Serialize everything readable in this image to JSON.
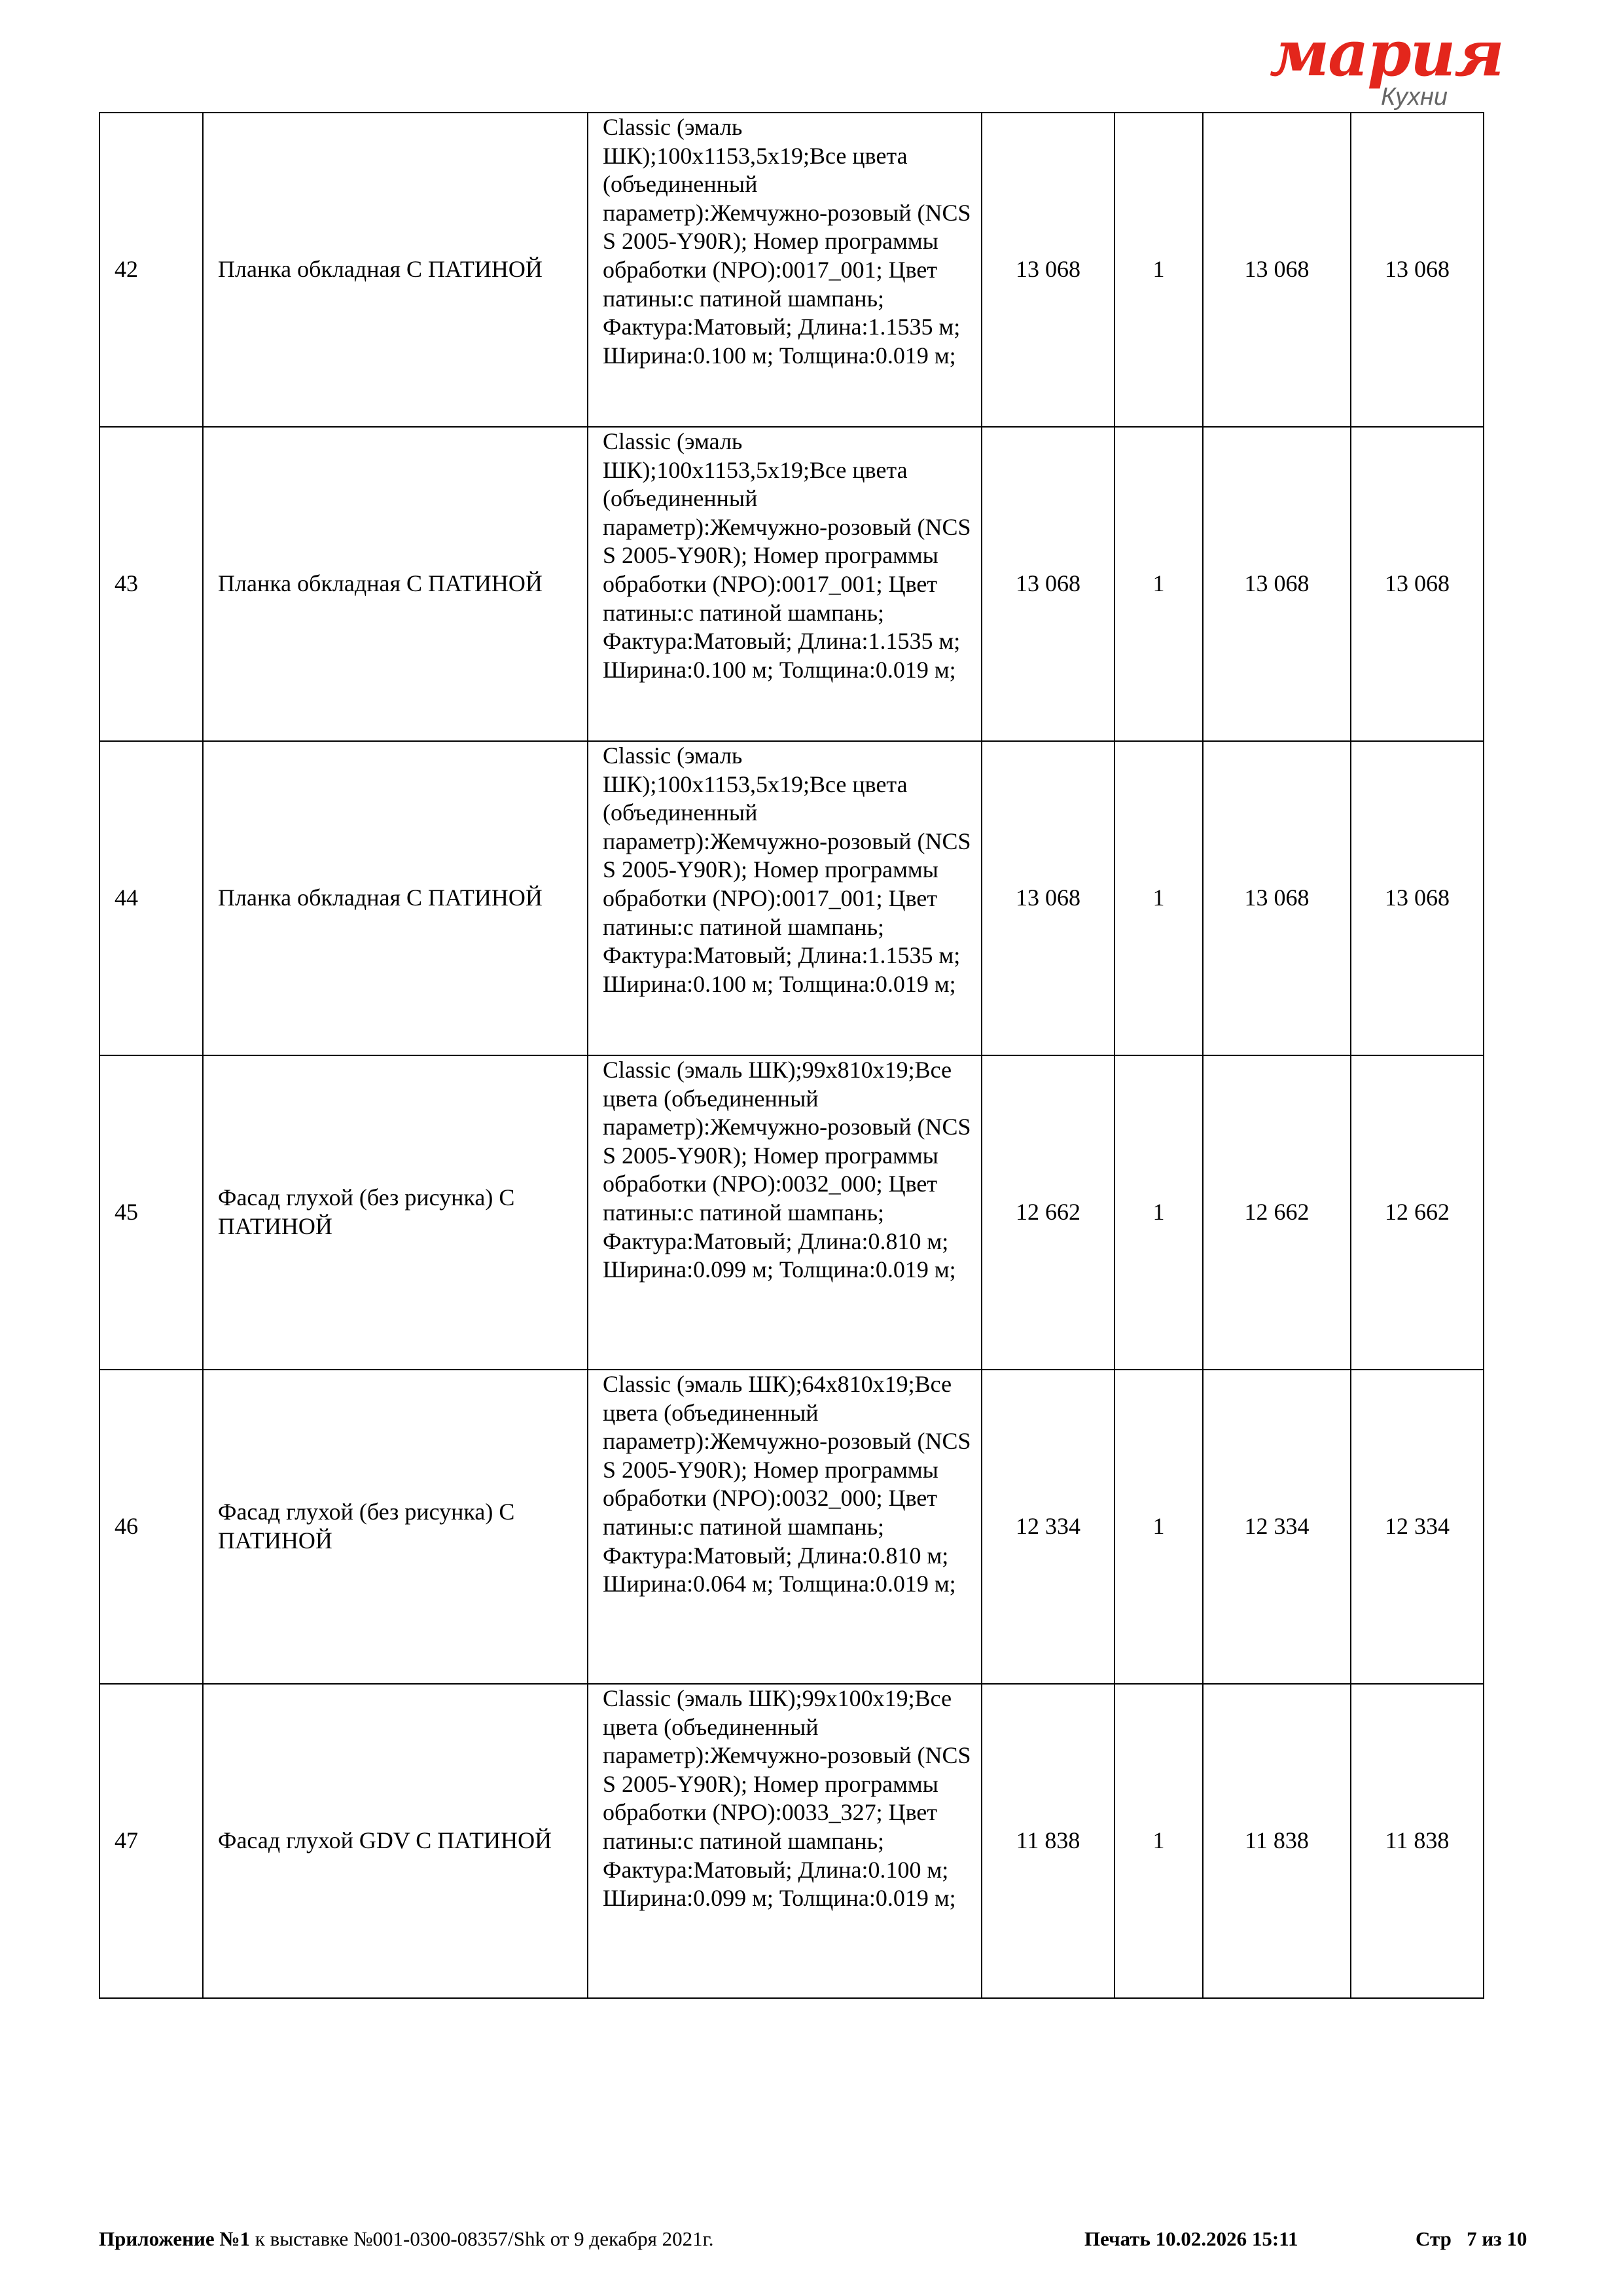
{
  "logo": {
    "brand": "мария",
    "sub": "Кухни",
    "brand_color": "#e3261c"
  },
  "rows": [
    {
      "n": "42",
      "name": "Планка обкладная С ПАТИНОЙ",
      "desc": "Classic (эмаль ШК);100x1153,5x19;Все цвета (объединенный параметр):Жемчужно-розовый (NCS S 2005-Y90R); Номер программы обработки (NPO):0017_001; Цвет патины:с патиной шампань; Фактура:Матовый; Длина:1.1535 м; Ширина:0.100 м; Толщина:0.019 м;",
      "price": "13 068",
      "qty": "1",
      "sum": "13 068",
      "total": "13 068"
    },
    {
      "n": "43",
      "name": "Планка обкладная С ПАТИНОЙ",
      "desc": "Classic (эмаль ШК);100x1153,5x19;Все цвета (объединенный параметр):Жемчужно-розовый (NCS S 2005-Y90R); Номер программы обработки (NPO):0017_001; Цвет патины:с патиной шампань; Фактура:Матовый; Длина:1.1535 м; Ширина:0.100 м; Толщина:0.019 м;",
      "price": "13 068",
      "qty": "1",
      "sum": "13 068",
      "total": "13 068"
    },
    {
      "n": "44",
      "name": "Планка обкладная С ПАТИНОЙ",
      "desc": "Classic (эмаль ШК);100x1153,5x19;Все цвета (объединенный параметр):Жемчужно-розовый (NCS S 2005-Y90R); Номер программы обработки (NPO):0017_001; Цвет патины:с патиной шампань; Фактура:Матовый; Длина:1.1535 м; Ширина:0.100 м; Толщина:0.019 м;",
      "price": "13 068",
      "qty": "1",
      "sum": "13 068",
      "total": "13 068"
    },
    {
      "n": "45",
      "name": "Фасад глухой (без рисунка) С ПАТИНОЙ",
      "desc": "Classic (эмаль ШК);99x810x19;Все цвета (объединенный параметр):Жемчужно-розовый (NCS S 2005-Y90R); Номер программы обработки (NPO):0032_000; Цвет патины:с патиной шампань; Фактура:Матовый; Длина:0.810 м; Ширина:0.099 м; Толщина:0.019 м;",
      "price": "12 662",
      "qty": "1",
      "sum": "12 662",
      "total": "12 662"
    },
    {
      "n": "46",
      "name": "Фасад глухой (без рисунка) С ПАТИНОЙ",
      "desc": "Classic (эмаль ШК);64x810x19;Все цвета (объединенный параметр):Жемчужно-розовый (NCS S 2005-Y90R); Номер программы обработки (NPO):0032_000; Цвет патины:с патиной шампань; Фактура:Матовый; Длина:0.810 м; Ширина:0.064 м; Толщина:0.019 м;",
      "price": "12 334",
      "qty": "1",
      "sum": "12 334",
      "total": "12 334"
    },
    {
      "n": "47",
      "name": "Фасад глухой GDV С ПАТИНОЙ",
      "desc": "Classic (эмаль ШК);99x100x19;Все цвета (объединенный параметр):Жемчужно-розовый (NCS S 2005-Y90R); Номер программы обработки (NPO):0033_327; Цвет патины:с патиной шампань; Фактура:Матовый; Длина:0.100 м; Ширина:0.099 м; Толщина:0.019 м;",
      "price": "11 838",
      "qty": "1",
      "sum": "11 838",
      "total": "11 838"
    }
  ],
  "footer": {
    "appendix_bold": "Приложение №1",
    "appendix_rest": " к выставке №001-0300-08357/Shk от 9 декабря 2021г.",
    "print": "Печать 10.02.2026 15:11",
    "page": "Стр   7 из 10"
  }
}
